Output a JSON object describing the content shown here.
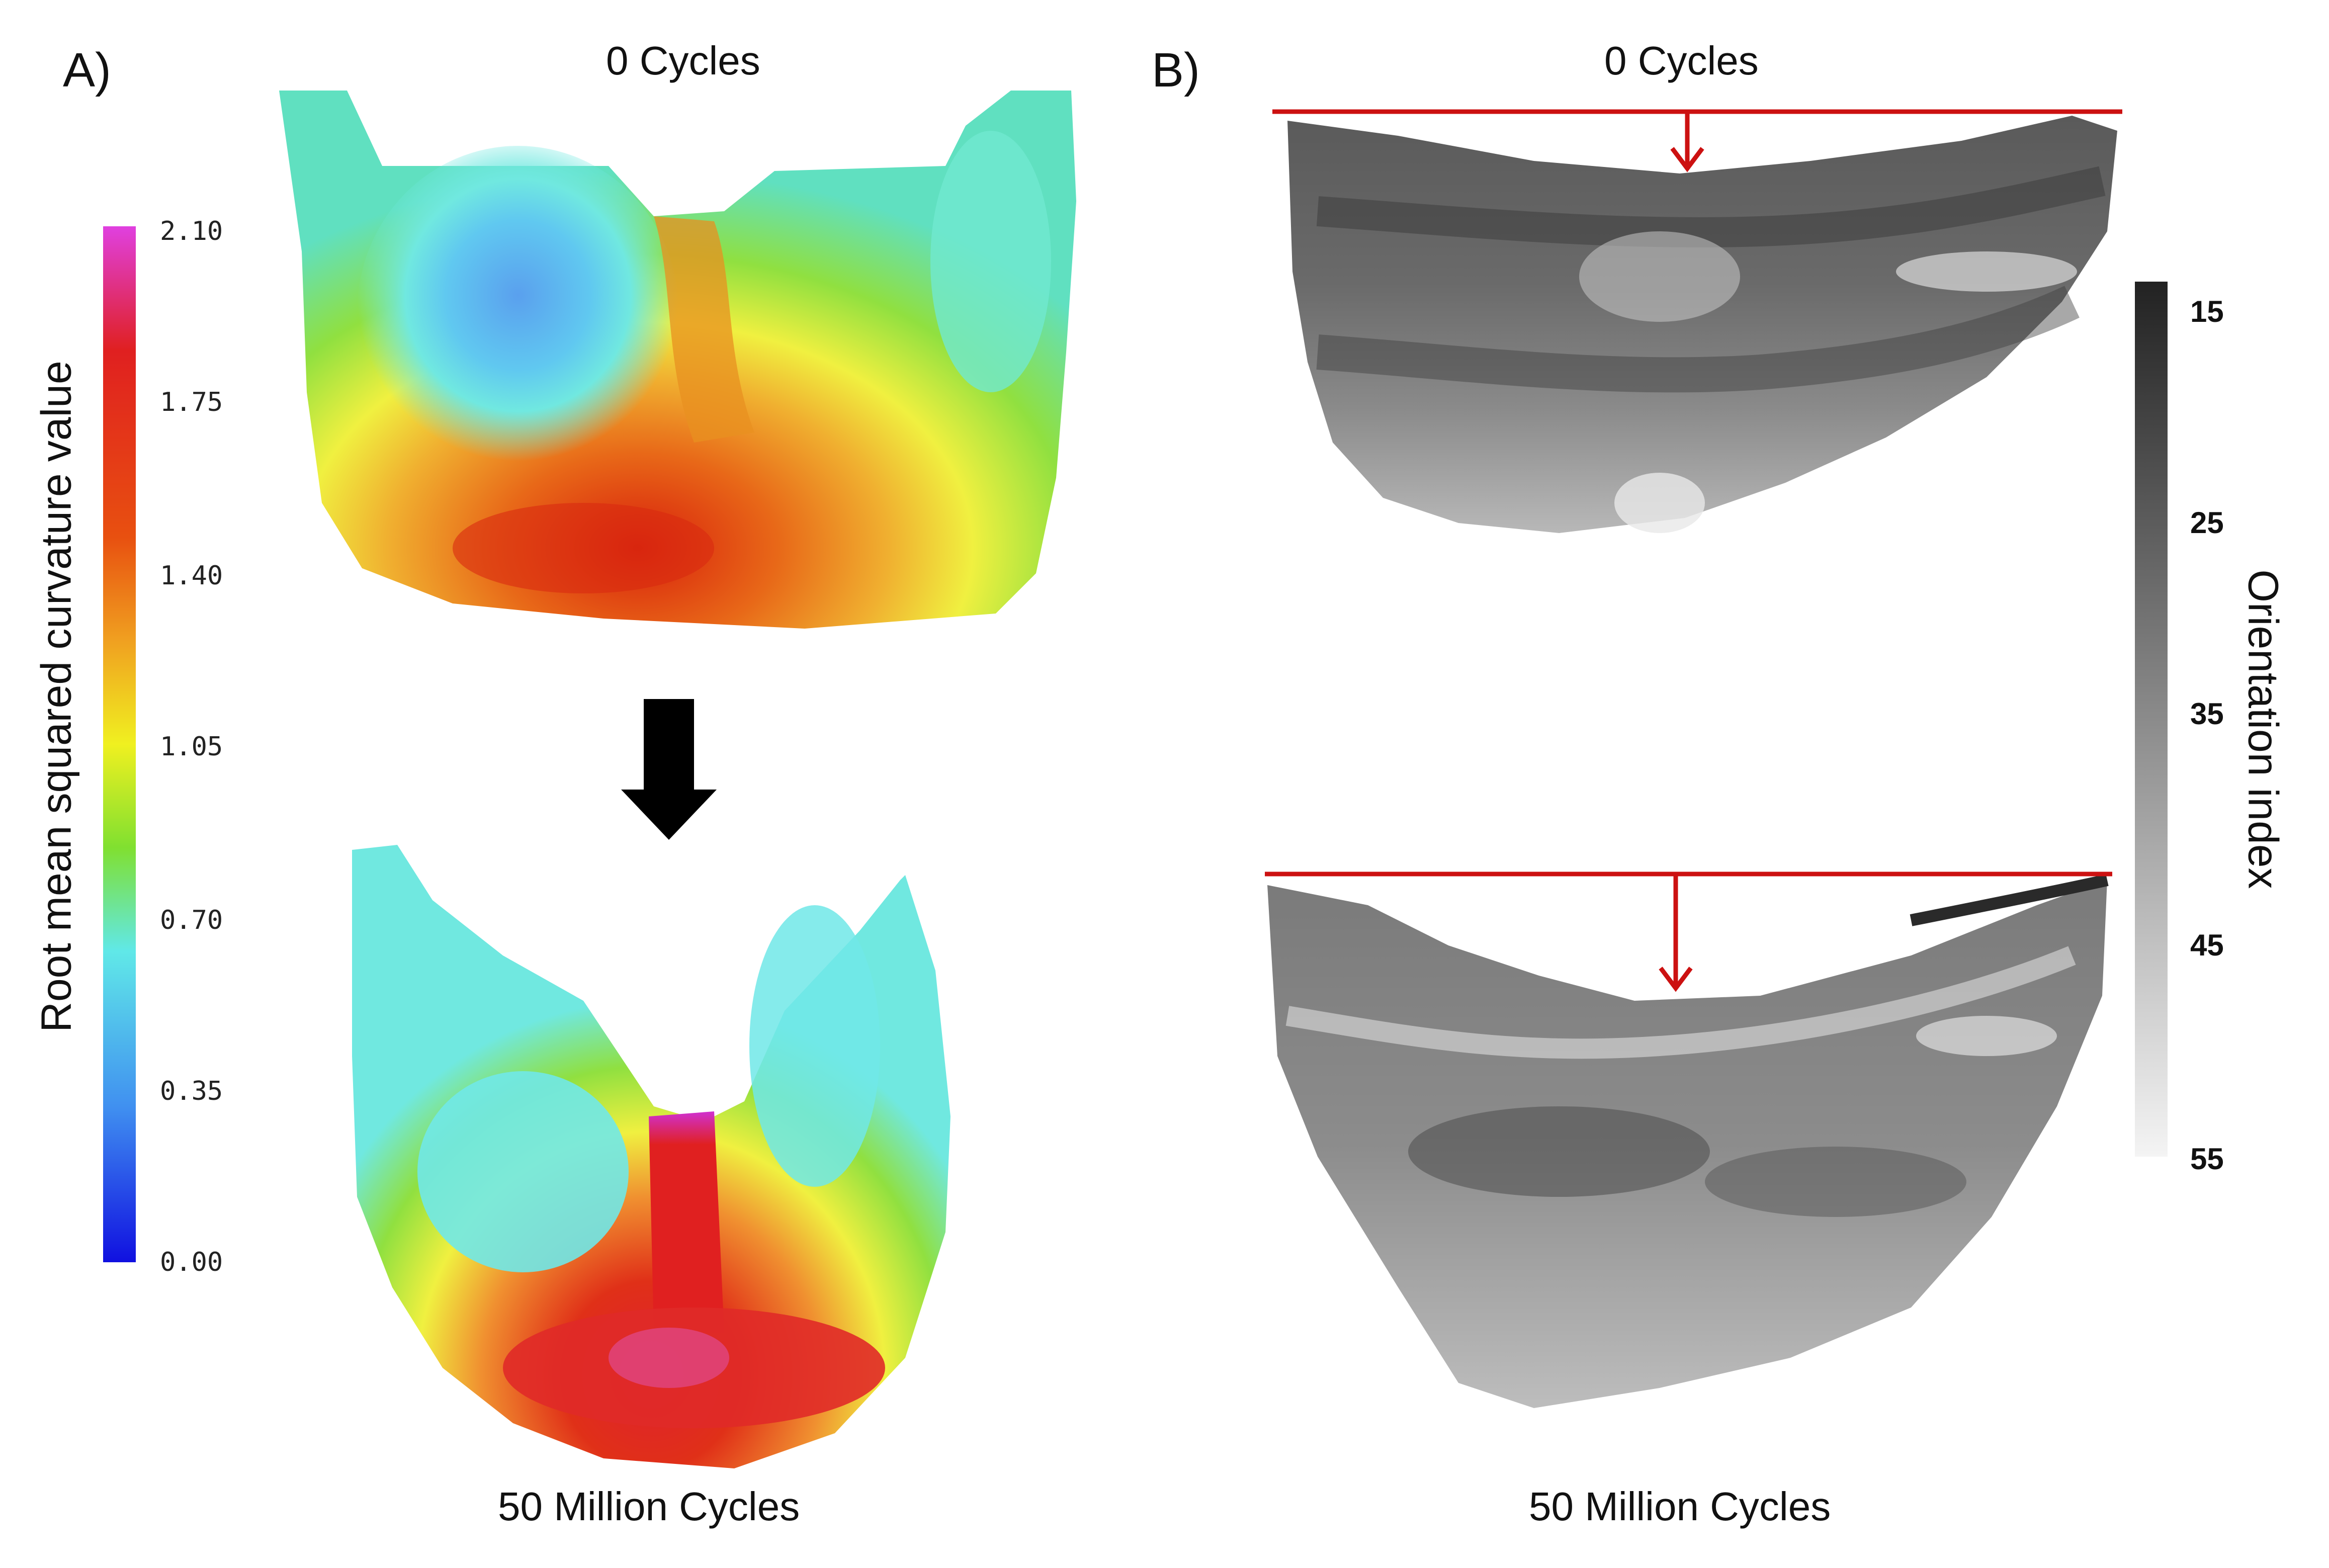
{
  "panel_a": {
    "label": "A)",
    "top_caption": "0 Cycles",
    "bottom_caption": "50 Million  Cycles",
    "colorbar": {
      "title": "Root mean squared  curvature value",
      "ticks": [
        "2.10",
        "1.75",
        "1.40",
        "1.05",
        "0.70",
        "0.35",
        "0.00"
      ],
      "colors": [
        "#e040e0",
        "#e01010",
        "#e87010",
        "#f0d020",
        "#f0f020",
        "#70d830",
        "#60e8e8",
        "#4090f0",
        "#1010e0"
      ]
    }
  },
  "panel_b": {
    "label": "B)",
    "top_caption": "0 Cycles",
    "bottom_caption": "50 Million  Cycles",
    "colorbar": {
      "title": "Orientation index",
      "ticks": [
        "15",
        "25",
        "35",
        "45",
        "55"
      ]
    },
    "marker_color": "#cc1111"
  }
}
